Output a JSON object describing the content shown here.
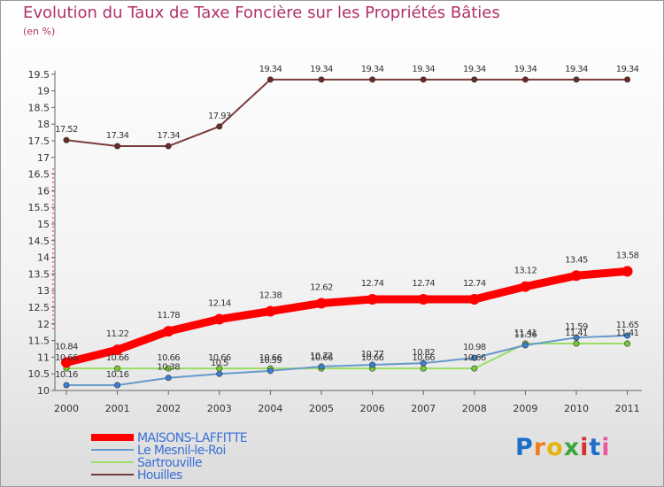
{
  "header": {
    "title": "Evolution du Taux de Taxe Foncière sur les Propriétés Bâties",
    "unit": "(en %)"
  },
  "logo_text": "Proxiti",
  "chart_data": {
    "type": "line",
    "title": "Evolution du Taux de Taxe Foncière sur les Propriétés Bâties",
    "ylabel": "(en %)",
    "x": [
      "2000",
      "2001",
      "2002",
      "2003",
      "2004",
      "2005",
      "2006",
      "2007",
      "2008",
      "2009",
      "2010",
      "2011"
    ],
    "ylim": [
      10,
      19.5
    ],
    "yticks": [
      "10",
      "10.5",
      "11",
      "11.5",
      "12",
      "12.5",
      "13",
      "13.5",
      "14",
      "14.5",
      "15",
      "15.5",
      "16",
      "16.5",
      "17",
      "17.5",
      "18",
      "18.5",
      "19",
      "19.5"
    ],
    "grid": false,
    "legend_position": "bottom-left",
    "series": [
      {
        "name": "MAISONS-LAFFITTE",
        "color": "#ff0000",
        "marker": "#ff0000",
        "thick": true,
        "values": [
          10.84,
          11.22,
          11.78,
          12.14,
          12.38,
          12.62,
          12.74,
          12.74,
          12.74,
          13.12,
          13.45,
          13.58
        ],
        "labels": [
          "10.84",
          "11.22",
          "11.78",
          "12.14",
          "12.38",
          "12.62",
          "12.74",
          "12.74",
          "12.74",
          "13.12",
          "13.45",
          "13.58"
        ]
      },
      {
        "name": "Le Mesnil-le-Roi",
        "color": "#6699cc",
        "marker": "#3a7fd0",
        "thick": false,
        "values": [
          10.16,
          10.16,
          10.38,
          10.5,
          10.59,
          10.72,
          10.77,
          10.82,
          10.98,
          11.36,
          11.59,
          11.65
        ],
        "labels": [
          "10.16",
          "10.16",
          "10.38",
          "10.5",
          "10.59",
          "10.72",
          "10.77",
          "10.82",
          "10.98",
          "11.36",
          "11.59",
          "11.65"
        ]
      },
      {
        "name": "Sartrouville",
        "color": "#99dd66",
        "marker": "#77cc33",
        "thick": false,
        "values": [
          10.66,
          10.66,
          10.66,
          10.66,
          10.66,
          10.66,
          10.66,
          10.66,
          10.66,
          11.41,
          11.41,
          11.41
        ],
        "labels": [
          "10.66",
          "10.66",
          "10.66",
          "10.66",
          "10.66",
          "10.66",
          "10.66",
          "10.66",
          "10.66",
          "11.41",
          "11.41",
          "11.41"
        ]
      },
      {
        "name": "Houilles",
        "color": "#7a3a3a",
        "marker": "#6a2a2a",
        "thick": false,
        "values": [
          17.52,
          17.34,
          17.34,
          17.93,
          19.34,
          19.34,
          19.34,
          19.34,
          19.34,
          19.34,
          19.34,
          19.34
        ],
        "labels": [
          "17.52",
          "17.34",
          "17.34",
          "17.93",
          "19.34",
          "19.34",
          "19.34",
          "19.34",
          "19.34",
          "19.34",
          "19.34",
          "19.34"
        ]
      }
    ]
  }
}
